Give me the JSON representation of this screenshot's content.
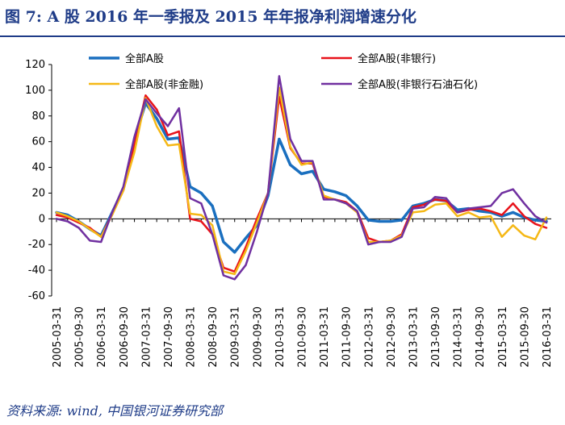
{
  "title": "图 7:  A 股 2016 年一季报及 2015 年年报净利润增速分化",
  "source": "资料来源: wind, 中国银河证券研究部",
  "chart_data": {
    "type": "line",
    "title": "图 7:  A 股 2016 年一季报及 2015 年年报净利润增速分化",
    "xlabel": "",
    "ylabel": "",
    "ylim": [
      -60,
      120
    ],
    "yticks": [
      -60,
      -40,
      -20,
      0,
      20,
      40,
      60,
      80,
      100,
      120
    ],
    "grid": false,
    "legend_position": "top",
    "x": [
      "2005-03-31",
      "2005-06-30",
      "2005-09-30",
      "2005-12-31",
      "2006-03-31",
      "2006-06-30",
      "2006-09-30",
      "2006-12-31",
      "2007-03-31",
      "2007-06-30",
      "2007-09-30",
      "2007-12-31",
      "2008-03-31",
      "2008-06-30",
      "2008-09-30",
      "2008-12-31",
      "2009-03-31",
      "2009-06-30",
      "2009-09-30",
      "2009-12-31",
      "2010-03-31",
      "2010-06-30",
      "2010-09-30",
      "2010-12-31",
      "2011-03-31",
      "2011-06-30",
      "2011-09-30",
      "2011-12-31",
      "2012-03-31",
      "2012-06-30",
      "2012-09-30",
      "2012-12-31",
      "2013-03-31",
      "2013-06-30",
      "2013-09-30",
      "2013-12-31",
      "2014-03-31",
      "2014-06-30",
      "2014-09-30",
      "2014-12-31",
      "2015-03-31",
      "2015-06-30",
      "2015-09-30",
      "2015-12-31",
      "2016-03-31"
    ],
    "xtick_labels": [
      "2005-03-31",
      "2005-09-30",
      "2006-03-31",
      "2006-09-30",
      "2007-03-31",
      "2007-09-30",
      "2008-03-31",
      "2008-09-30",
      "2009-03-31",
      "2009-09-30",
      "2010-03-31",
      "2010-09-30",
      "2011-03-31",
      "2011-09-30",
      "2012-03-31",
      "2012-09-30",
      "2013-03-31",
      "2013-09-30",
      "2014-03-31",
      "2014-09-30",
      "2015-03-31",
      "2015-09-30",
      "2016-03-31"
    ],
    "series": [
      {
        "name": "全部A股",
        "color": "#1a6fbf",
        "width": 3.5,
        "values": [
          5,
          3,
          -2,
          -8,
          -13,
          5,
          23,
          62,
          90,
          78,
          62,
          63,
          25,
          20,
          10,
          -18,
          -26,
          -15,
          -5,
          18,
          62,
          42,
          35,
          37,
          23,
          21,
          18,
          10,
          -1,
          -2,
          -2,
          -1,
          10,
          12,
          15,
          14,
          7,
          8,
          6,
          5,
          2,
          5,
          1,
          -1,
          -2
        ]
      },
      {
        "name": "全部A股(非银行)",
        "color": "#e8131b",
        "width": 2.5,
        "values": [
          3,
          1,
          -3,
          -7,
          -14,
          4,
          22,
          58,
          96,
          85,
          65,
          68,
          0,
          -2,
          -12,
          -38,
          -41,
          -22,
          0,
          20,
          95,
          55,
          43,
          43,
          17,
          15,
          13,
          6,
          -15,
          -18,
          -17,
          -12,
          9,
          11,
          15,
          14,
          5,
          7,
          8,
          6,
          3,
          12,
          2,
          -4,
          -7
        ]
      },
      {
        "name": "全部A股(非金融)",
        "color": "#f5b816",
        "width": 2.5,
        "values": [
          5,
          2,
          -2,
          -8,
          -14,
          3,
          22,
          52,
          94,
          72,
          57,
          58,
          4,
          3,
          -5,
          -41,
          -43,
          -25,
          -3,
          20,
          102,
          56,
          42,
          44,
          18,
          15,
          12,
          5,
          -18,
          -18,
          -17,
          -13,
          5,
          6,
          11,
          12,
          2,
          5,
          1,
          2,
          -14,
          -5,
          -13,
          -16,
          1
        ]
      },
      {
        "name": "全部A股(非银行石油石化)",
        "color": "#7030a0",
        "width": 2.5,
        "values": [
          0,
          -2,
          -7,
          -17,
          -18,
          5,
          25,
          64,
          93,
          82,
          72,
          86,
          16,
          12,
          -12,
          -44,
          -47,
          -36,
          -10,
          20,
          111,
          62,
          45,
          45,
          15,
          15,
          12,
          6,
          -20,
          -18,
          -18,
          -14,
          8,
          9,
          17,
          16,
          5,
          8,
          9,
          10,
          20,
          23,
          12,
          2,
          -3
        ]
      }
    ]
  }
}
